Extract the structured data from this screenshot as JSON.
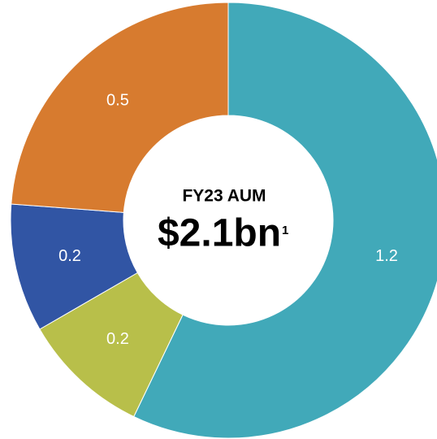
{
  "chart_data": {
    "type": "donut",
    "center_title": "FY23 AUM",
    "center_value": "$2.1bn",
    "center_note": "1",
    "values": [
      1.2,
      0.2,
      0.2,
      0.5
    ],
    "colors": [
      "#41a9b9",
      "#b8bf4a",
      "#3155a4",
      "#d77b2f"
    ]
  }
}
